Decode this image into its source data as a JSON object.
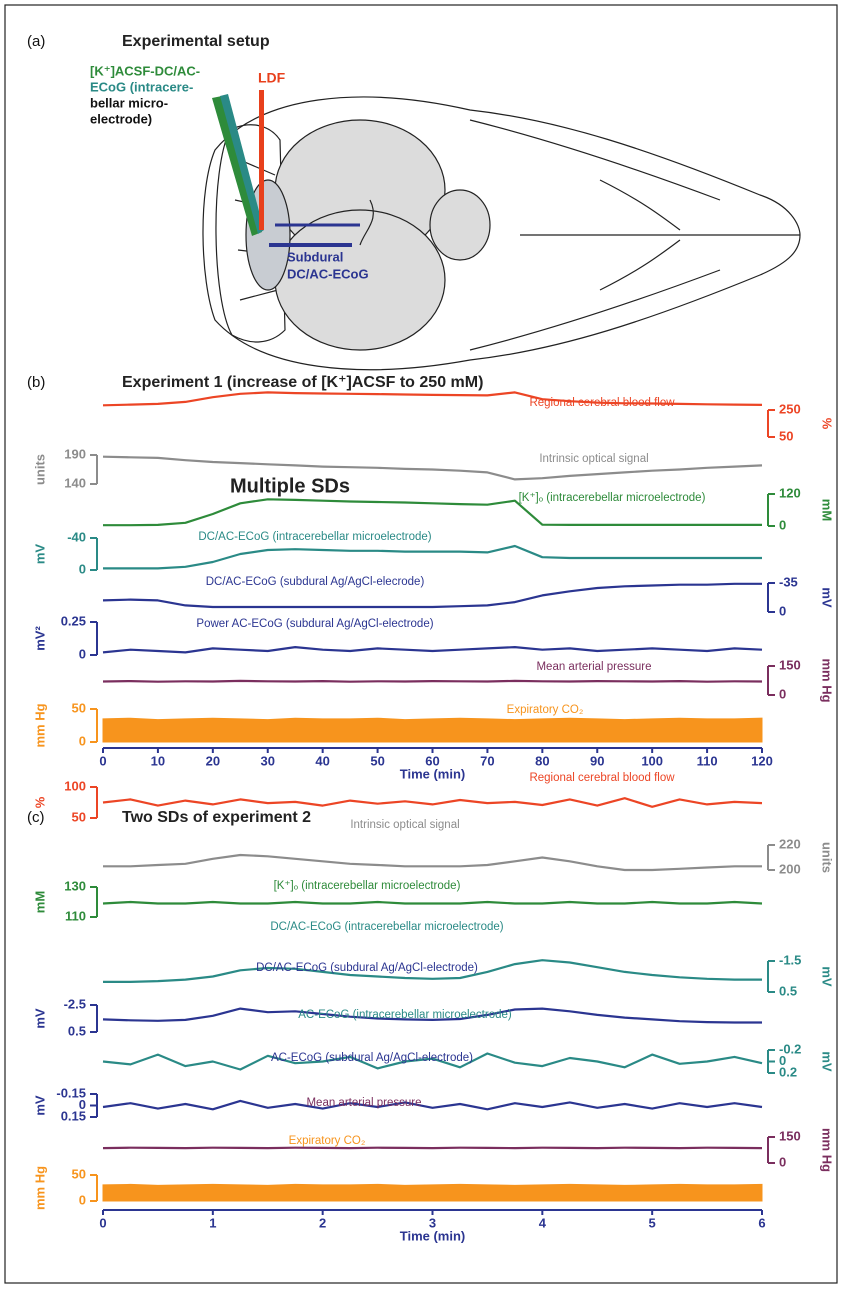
{
  "diagram": {
    "label": "(a)",
    "title": "Experimental setup",
    "electrode_label": [
      "[K⁺]ACSF-DC/AC-",
      "ECoG (intracere-",
      "bellar micro-",
      "electrode)"
    ],
    "ldf_label": "LDF",
    "subdural_label": [
      "Subdural",
      "DC/AC-ECoG"
    ]
  },
  "chart_data": [
    {
      "type": "line",
      "panel_label": "(b)",
      "title": "Experiment 1 (increase of [K⁺]ACSF to 250 mM)",
      "annotation": "Multiple SDs",
      "x": [
        0,
        5,
        10,
        15,
        20,
        25,
        30,
        35,
        40,
        45,
        50,
        55,
        60,
        65,
        70,
        75,
        80,
        85,
        90,
        95,
        100,
        105,
        110,
        115,
        120
      ],
      "xlim": [
        0,
        120
      ],
      "xticks": [
        0,
        10,
        20,
        30,
        40,
        50,
        60,
        70,
        80,
        90,
        100,
        110,
        120
      ],
      "xlabel": "Time (min)",
      "series": [
        {
          "name": "Regional cerebral blood flow",
          "color": "#ec4525",
          "unit": "%",
          "ylim": [
            50,
            250
          ],
          "yticks": [
            50,
            250
          ],
          "values": [
            285,
            290,
            295,
            310,
            345,
            370,
            380,
            375,
            372,
            370,
            368,
            365,
            362,
            360,
            358,
            380,
            330,
            315,
            305,
            300,
            298,
            295,
            292,
            290,
            288
          ]
        },
        {
          "name": "Intrinsic optical signal",
          "color": "#8c8c8c",
          "unit": "units",
          "ylim": [
            140,
            190
          ],
          "yticks": [
            140,
            190
          ],
          "values": [
            187,
            186,
            185,
            181,
            178,
            176,
            174,
            172,
            170,
            169,
            168,
            166,
            165,
            163,
            160,
            148,
            150,
            154,
            157,
            160,
            163,
            165,
            168,
            170,
            172
          ]
        },
        {
          "name": "[K⁺]ₒ (intracerebellar microelectrode)",
          "color": "#2e8b3a",
          "unit": "mM",
          "ylim": [
            0,
            120
          ],
          "yticks": [
            0,
            120
          ],
          "values": [
            3,
            3,
            4,
            12,
            45,
            85,
            100,
            98,
            95,
            92,
            90,
            88,
            85,
            82,
            80,
            95,
            5,
            4,
            4,
            4,
            4,
            4,
            4,
            4,
            4
          ]
        },
        {
          "name": "DC/AC-ECoG (intracerebellar microelectrode)",
          "color": "#2a8a86",
          "unit": "mV",
          "ylim": [
            0,
            -40
          ],
          "yticks": [
            0,
            -40
          ],
          "values": [
            -2,
            -2,
            -2,
            -4,
            -10,
            -20,
            -25,
            -26,
            -25,
            -24,
            -24,
            -23,
            -23,
            -23,
            -22,
            -30,
            -16,
            -15,
            -15,
            -15,
            -15,
            -15,
            -15,
            -15,
            -15
          ]
        },
        {
          "name": "DC/AC-ECoG (subdural Ag/AgCl-elecrode)",
          "color": "#2b3591",
          "unit": "mV",
          "ylim": [
            0,
            -35
          ],
          "yticks": [
            0,
            -35
          ],
          "values": [
            -14,
            -15,
            -14,
            -8,
            -6,
            -6,
            -6,
            -6,
            -6,
            -6,
            -6,
            -6,
            -6,
            -7,
            -8,
            -12,
            -20,
            -25,
            -29,
            -31,
            -32,
            -33,
            -33,
            -34,
            -34
          ]
        },
        {
          "name": "Power AC-ECoG (subdural Ag/AgCl-electrode)",
          "color": "#2b3591",
          "unit": "mV²",
          "ylim": [
            0,
            0.25
          ],
          "yticks": [
            0,
            0.25
          ],
          "values": [
            0.02,
            0.04,
            0.03,
            0.02,
            0.05,
            0.04,
            0.03,
            0.06,
            0.04,
            0.03,
            0.05,
            0.04,
            0.03,
            0.04,
            0.05,
            0.06,
            0.04,
            0.05,
            0.03,
            0.04,
            0.05,
            0.04,
            0.03,
            0.05,
            0.04
          ]
        },
        {
          "name": "Mean arterial pressure",
          "color": "#7a2e5e",
          "unit": "mm Hg",
          "ylim": [
            0,
            150
          ],
          "yticks": [
            0,
            150
          ],
          "values": [
            70,
            72,
            69,
            71,
            70,
            73,
            71,
            70,
            72,
            69,
            71,
            70,
            72,
            71,
            70,
            73,
            71,
            70,
            72,
            71,
            70,
            72,
            69,
            71,
            70
          ]
        },
        {
          "name": "Expiratory CO₂",
          "color": "#f7941d",
          "unit": "mm Hg",
          "ylim": [
            0,
            50
          ],
          "yticks": [
            0,
            50
          ],
          "fill": true,
          "values": [
            35,
            36,
            34,
            35,
            36,
            35,
            34,
            36,
            35,
            35,
            36,
            34,
            35,
            36,
            35,
            34,
            35,
            36,
            35,
            34,
            35,
            36,
            35,
            35,
            36
          ]
        }
      ]
    },
    {
      "type": "line",
      "panel_label": "(c)",
      "title": "Two SDs of experiment 2",
      "x": [
        0,
        0.25,
        0.5,
        0.75,
        1,
        1.25,
        1.5,
        1.75,
        2,
        2.25,
        2.5,
        2.75,
        3,
        3.25,
        3.5,
        3.75,
        4,
        4.25,
        4.5,
        4.75,
        5,
        5.25,
        5.5,
        5.75,
        6
      ],
      "xlim": [
        0,
        6
      ],
      "xticks": [
        0,
        1,
        2,
        3,
        4,
        5,
        6
      ],
      "xlabel": "Time (min)",
      "series": [
        {
          "name": "Regional cerebral blood flow",
          "color": "#ec4525",
          "unit": "%",
          "ylim": [
            50,
            100
          ],
          "yticks": [
            50,
            100
          ],
          "values": [
            75,
            80,
            70,
            78,
            72,
            80,
            74,
            76,
            70,
            78,
            73,
            77,
            72,
            79,
            74,
            76,
            71,
            80,
            70,
            82,
            68,
            80,
            72,
            76,
            74
          ]
        },
        {
          "name": "Intrinsic optical signal",
          "color": "#8c8c8c",
          "unit": "units",
          "ylim": [
            200,
            220
          ],
          "yticks": [
            200,
            220
          ],
          "values": [
            203,
            203,
            204,
            205,
            209,
            212,
            211,
            209,
            207,
            205,
            204,
            203,
            203,
            203,
            204,
            207,
            210,
            207,
            203,
            200,
            200,
            201,
            202,
            203,
            203
          ]
        },
        {
          "name": "[K⁺]ₒ (intracerebellar microelectrode)",
          "color": "#2e8b3a",
          "unit": "mM",
          "ylim": [
            110,
            130
          ],
          "yticks": [
            110,
            130
          ],
          "values": [
            119,
            120,
            119,
            119,
            120,
            119,
            119,
            120,
            119,
            119,
            120,
            119,
            119,
            119,
            120,
            119,
            119,
            120,
            119,
            119,
            120,
            119,
            119,
            120,
            119
          ]
        },
        {
          "name": "DC/AC-ECoG (intracerebellar microelectrode)",
          "color": "#2a8a86",
          "unit": "mV",
          "ylim": [
            0.5,
            -1.5
          ],
          "yticks": [
            0.5,
            -1.5
          ],
          "values": [
            -0.15,
            -0.15,
            -0.2,
            -0.3,
            -0.5,
            -0.9,
            -1.05,
            -1.0,
            -0.8,
            -0.6,
            -0.5,
            -0.4,
            -0.35,
            -0.4,
            -0.8,
            -1.3,
            -1.55,
            -1.4,
            -1.1,
            -0.8,
            -0.6,
            -0.45,
            -0.35,
            -0.3,
            -0.3
          ]
        },
        {
          "name": "DC/AC-ECoG (subdural Ag/AgCl-electrode)",
          "color": "#2b3591",
          "unit": "mV",
          "ylim": [
            0.5,
            -2.5
          ],
          "yticks": [
            0.5,
            -2.5
          ],
          "values": [
            -0.9,
            -0.8,
            -0.75,
            -0.85,
            -1.3,
            -2.1,
            -1.7,
            -1.8,
            -1.5,
            -1.2,
            -1.0,
            -0.9,
            -0.85,
            -0.95,
            -1.4,
            -2.0,
            -2.1,
            -1.8,
            -1.4,
            -1.1,
            -0.9,
            -0.7,
            -0.6,
            -0.55,
            -0.55
          ]
        },
        {
          "name": "AC-ECoG (intracerebellar microelectrode)",
          "color": "#2a8a86",
          "unit": "mV",
          "ylim": [
            0.2,
            -0.2
          ],
          "yticks": [
            0.2,
            0,
            -0.2
          ],
          "values": [
            0,
            0.05,
            -0.12,
            0.08,
            0,
            0.14,
            -0.1,
            0.03,
            0,
            -0.08,
            0.12,
            0,
            -0.05,
            0.1,
            -0.14,
            0.02,
            0.08,
            -0.06,
            0,
            0.1,
            -0.12,
            0.04,
            0,
            -0.08,
            0.03
          ]
        },
        {
          "name": "AC-ECoG (subdural Ag/AgCl-electrode)",
          "color": "#2b3591",
          "unit": "mV",
          "ylim": [
            0.15,
            -0.15
          ],
          "yticks": [
            0.15,
            0,
            -0.15
          ],
          "values": [
            0.02,
            -0.03,
            0.04,
            -0.02,
            0.05,
            -0.06,
            0.03,
            -0.02,
            0.04,
            -0.03,
            0.02,
            -0.04,
            0.03,
            -0.02,
            0.05,
            -0.03,
            0.02,
            -0.04,
            0.03,
            -0.02,
            0.04,
            -0.03,
            0.02,
            -0.03,
            0.02
          ]
        },
        {
          "name": "Mean arterial pressure",
          "color": "#7a2e5e",
          "unit": "mm Hg",
          "ylim": [
            0,
            150
          ],
          "yticks": [
            0,
            150
          ],
          "values": [
            86,
            88,
            87,
            86,
            88,
            87,
            86,
            88,
            87,
            86,
            88,
            87,
            86,
            88,
            87,
            86,
            88,
            87,
            86,
            88,
            87,
            86,
            88,
            87,
            86
          ]
        },
        {
          "name": "Expiratory CO₂",
          "color": "#f7941d",
          "unit": "mm Hg",
          "ylim": [
            0,
            50
          ],
          "yticks": [
            0,
            50
          ],
          "fill": true,
          "values": [
            31,
            32,
            30,
            31,
            32,
            31,
            30,
            32,
            31,
            31,
            32,
            30,
            31,
            32,
            31,
            30,
            31,
            32,
            31,
            30,
            31,
            32,
            31,
            31,
            32
          ]
        }
      ]
    }
  ]
}
